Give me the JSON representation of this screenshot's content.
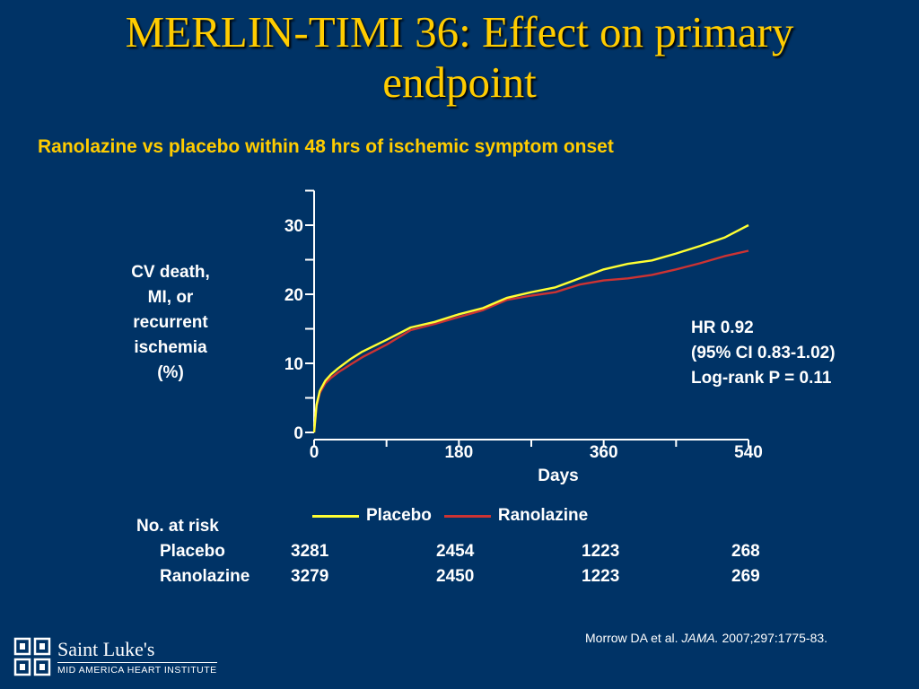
{
  "slide": {
    "title_line1": "MERLIN-TIMI 36: Effect on primary",
    "title_line2": "endpoint",
    "subtitle": "Ranolazine vs placebo within 48 hrs of ischemic symptom onset",
    "ylabel_lines": [
      "CV death,",
      "MI, or",
      "recurrent",
      "ischemia",
      "(%)"
    ],
    "stats": [
      "HR 0.92",
      "(95% CI 0.83-1.02)",
      "Log-rank P = 0.11"
    ],
    "citation_pre": "Morrow DA et al. ",
    "citation_journal": "JAMA.",
    "citation_post": " 2007;297:1775-83.",
    "logo_name": "Saint Luke's",
    "logo_sub": "MID AMERICA HEART INSTITUTE",
    "logo_icon": "saint-lukes-cross-logo",
    "background": "#003366",
    "title_color": "#ffcc00"
  },
  "chart_data": {
    "type": "line",
    "title": "",
    "xlabel": "Days",
    "ylabel": "CV death, MI, or recurrent ischemia (%)",
    "xlim": [
      0,
      540
    ],
    "ylim": [
      0,
      35
    ],
    "x_ticks": [
      0,
      180,
      360,
      540
    ],
    "y_ticks": [
      0,
      10,
      20,
      30
    ],
    "legend_position": "bottom",
    "series": [
      {
        "name": "Placebo",
        "color": "#ffff33",
        "x": [
          0,
          3,
          7,
          14,
          21,
          30,
          45,
          60,
          90,
          120,
          150,
          180,
          210,
          240,
          270,
          300,
          330,
          360,
          390,
          420,
          450,
          480,
          510,
          540
        ],
        "y": [
          0,
          4.0,
          6.0,
          7.5,
          8.4,
          9.3,
          10.6,
          11.7,
          13.4,
          15.2,
          16.0,
          17.1,
          18.0,
          19.5,
          20.3,
          21.0,
          22.3,
          23.6,
          24.4,
          24.9,
          25.9,
          27.0,
          28.2,
          30.0
        ]
      },
      {
        "name": "Ranolazine",
        "color": "#cc3333",
        "x": [
          0,
          3,
          7,
          14,
          21,
          30,
          45,
          60,
          90,
          120,
          150,
          180,
          210,
          240,
          270,
          300,
          330,
          360,
          390,
          420,
          450,
          480,
          510,
          540
        ],
        "y": [
          0,
          3.8,
          5.7,
          7.1,
          7.9,
          8.7,
          9.8,
          10.9,
          12.7,
          14.8,
          15.7,
          16.7,
          17.7,
          19.2,
          19.8,
          20.3,
          21.4,
          22.0,
          22.3,
          22.8,
          23.6,
          24.5,
          25.5,
          26.3
        ]
      }
    ],
    "at_risk": {
      "title": "No. at risk",
      "rows": [
        {
          "label": "Placebo",
          "values": [
            "3281",
            "2454",
            "1223",
            "268"
          ]
        },
        {
          "label": "Ranolazine",
          "values": [
            "3279",
            "2450",
            "1223",
            "269"
          ]
        }
      ]
    }
  }
}
